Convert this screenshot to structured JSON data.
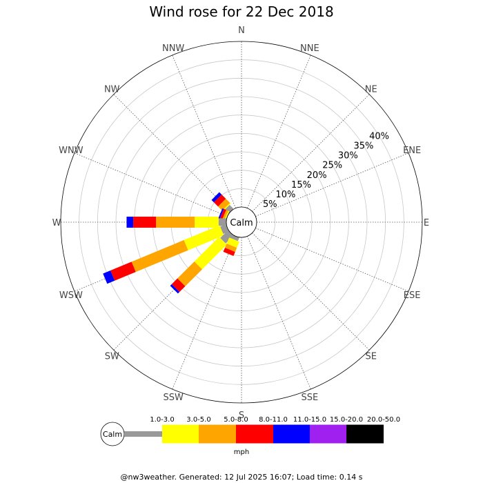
{
  "chart_data": {
    "type": "wind-rose",
    "title": "Wind rose for 22 Dec 2018",
    "calm_label": "Calm",
    "directions": [
      "N",
      "NNE",
      "NE",
      "ENE",
      "E",
      "ESE",
      "SE",
      "SSE",
      "S",
      "SSW",
      "SW",
      "WSW",
      "W",
      "WNW",
      "NW",
      "NNW"
    ],
    "radial_ticks": [
      "5%",
      "10%",
      "15%",
      "20%",
      "25%",
      "30%",
      "35%",
      "40%"
    ],
    "radial_max_percent": 45,
    "unit": "mph",
    "speed_bins": [
      {
        "label": "1.0-3.0",
        "color": "#999999"
      },
      {
        "label": "3.0-5.0",
        "color": "#ffff00"
      },
      {
        "label": "5.0-8.0",
        "color": "#ffa500"
      },
      {
        "label": "8.0-11.0",
        "color": "#ff0000"
      },
      {
        "label": "11.0-15.0",
        "color": "#0000ff"
      },
      {
        "label": "15.0-20.0",
        "color": "#a020f0"
      },
      {
        "label": "20.0-50.0",
        "color": "#000000"
      }
    ],
    "series": [
      {
        "direction": "NW",
        "values": [
          1.5,
          0.3,
          1.6,
          1.6,
          0.9,
          0,
          0
        ]
      },
      {
        "direction": "WNW",
        "values": [
          0.1,
          0.3,
          0.6,
          0.7,
          0.4,
          0,
          0
        ]
      },
      {
        "direction": "W",
        "values": [
          2.1,
          6.5,
          10.5,
          6.2,
          1.8,
          0,
          0
        ]
      },
      {
        "direction": "WSW",
        "values": [
          1.7,
          10.5,
          15.4,
          6.2,
          2.2,
          0,
          0
        ]
      },
      {
        "direction": "SW",
        "values": [
          3.0,
          9.5,
          6.5,
          2.2,
          0.6,
          0,
          0
        ]
      },
      {
        "direction": "SSW",
        "values": [
          1.0,
          1.8,
          1.2,
          1.2,
          0,
          0,
          0
        ]
      }
    ]
  },
  "footer": "@nw3weather. Generated: 12 Jul 2025 16:07; Load time: 0.14 s"
}
